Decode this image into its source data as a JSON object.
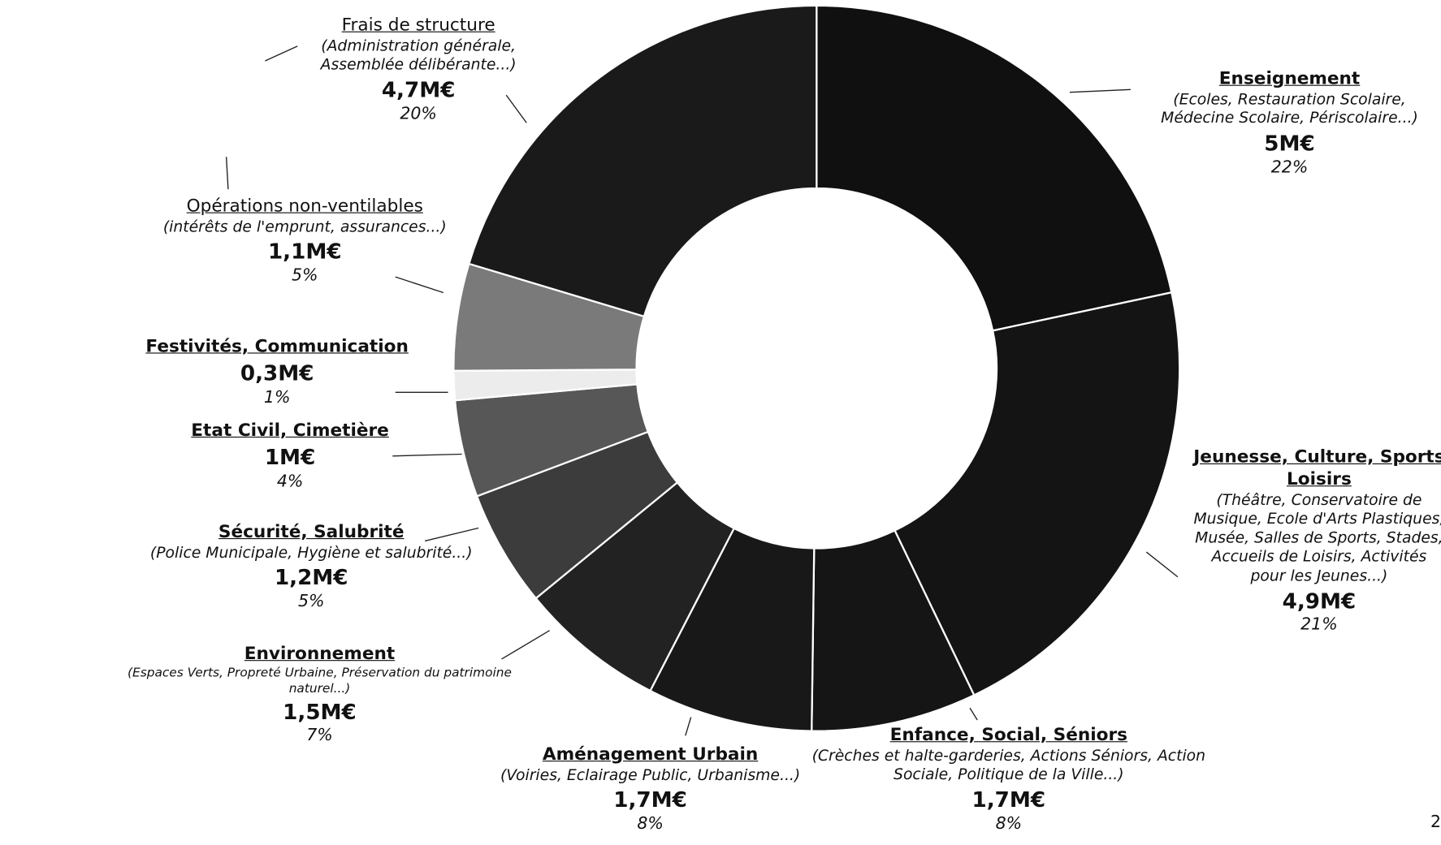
{
  "chart_data": {
    "type": "donut",
    "categories": [
      "Enseignement",
      "Jeunesse, Culture, Sports Loisirs",
      "Enfance, Social, Séniors",
      "Aménagement Urbain",
      "Environnement",
      "Sécurité, Salubrité",
      "Etat Civil, Cimetière",
      "Festivités, Communication",
      "Opérations non-ventilables",
      "Frais de structure"
    ],
    "descriptions": [
      "(Ecoles, Restauration Scolaire, Médecine Scolaire, Périscolaire...)",
      "(Théâtre, Conservatoire de Musique, Ecole d'Arts Plastiques, Musée, Salles de Sports, Stades, Accueils de Loisirs, Activités pour les Jeunes...)",
      "(Crèches et halte-garderies, Actions Séniors, Action Sociale, Politique de la Ville...)",
      "(Voiries, Eclairage Public, Urbanisme...)",
      "(Espaces Verts, Propreté Urbaine, Préservation du patrimoine naturel...)",
      "(Police Municipale, Hygiène et salubrité...)",
      null,
      null,
      "(intérêts de l'emprunt, assurances...)",
      "(Administration générale, Assemblée délibérante...)"
    ],
    "values": [
      5,
      4.9,
      1.7,
      1.7,
      1.5,
      1.2,
      1,
      0.3,
      1.1,
      4.7
    ],
    "value_labels": [
      "5M€",
      "4,9M€",
      "1,7M€",
      "1,7M€",
      "1,5M€",
      "1,2M€",
      "1M€",
      "0,3M€",
      "1,1M€",
      "4,7M€"
    ],
    "share_labels": [
      "22%",
      "21%",
      "8%",
      "8%",
      "7%",
      "5%",
      "4%",
      "1%",
      "5%",
      "20%"
    ],
    "colors": [
      "#101010",
      "#141414",
      "#151515",
      "#181818",
      "#222222",
      "#3c3c3c",
      "#575757",
      "#ececec",
      "#7a7a7a",
      "#1a1a1a"
    ]
  },
  "page_number": "2"
}
